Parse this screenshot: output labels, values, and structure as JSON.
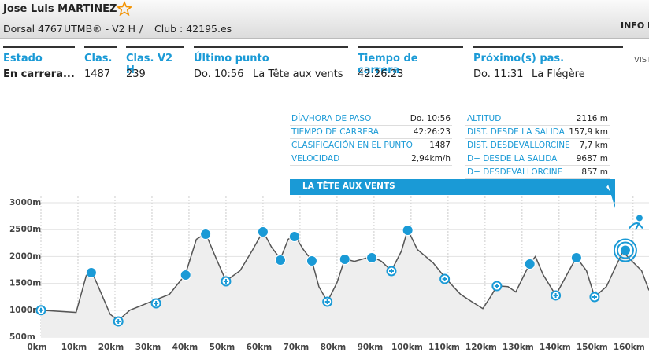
{
  "header": {
    "name": "Jose Luis MARTINEZ",
    "bib": "Dorsal 4767",
    "race": "UTMB® - V2 H",
    "separator": "/",
    "club": "Club : 42195.es",
    "info": "INFO D"
  },
  "stats": [
    {
      "label": "Estado",
      "value": "En carrera..."
    },
    {
      "label": "Clas.",
      "value": 1487
    },
    {
      "label": "Clas. V2 H",
      "value": 239
    },
    {
      "label": "Último punto",
      "time": "Do. 10:56",
      "place": "La Tête aux vents"
    },
    {
      "label": "Tiempo de carrera",
      "value": "42:26:23"
    },
    {
      "label": "Próximo(s) pas.",
      "time": "Do. 11:31",
      "place": "La Flégère"
    }
  ],
  "side_link": "VIST",
  "point_info": {
    "left": [
      [
        "DÍA/HORA DE PASO",
        "Do. 10:56"
      ],
      [
        "TIEMPO DE CARRERA",
        "42:26:23"
      ],
      [
        "CLASIFICACIÓN EN EL PUNTO",
        "1487"
      ],
      [
        "VELOCIDAD",
        "2,94km/h"
      ]
    ],
    "right": [
      [
        "ALTITUD",
        "2116 m"
      ],
      [
        "DIST. DESDE LA SALIDA",
        "157,9 km"
      ],
      [
        "DIST. DESDEVALLORCINE",
        "7,7 km"
      ],
      [
        "D+ DESDE LA SALIDA",
        "9687 m"
      ],
      [
        "D+ DESDEVALLORCINE",
        "857 m"
      ]
    ],
    "banner": "LA TÊTE AUX VENTS"
  },
  "chart_data": {
    "type": "area",
    "color": "#555555",
    "fill": "#eeeeee",
    "marker_color": "#1a9ad6",
    "x": [
      0,
      9.5,
      12.3,
      13.6,
      15.5,
      18.7,
      20.9,
      24,
      29.4,
      34.7,
      39,
      42,
      44.5,
      47.4,
      50,
      53.8,
      57,
      60,
      62.3,
      64.7,
      66.8,
      68.5,
      70.9,
      73.2,
      75.1,
      77.4,
      80,
      82.1,
      84.7,
      89.4,
      92,
      94.7,
      97.4,
      99.1,
      101.7,
      106,
      109.4,
      113.4,
      116.6,
      119.4,
      121.9,
      123.2,
      126.2,
      128.3,
      132.1,
      133.6,
      135.7,
      139.1,
      142.1,
      144.7,
      147.4,
      149.6,
      152.8,
      157.2,
      160.2,
      162.3,
      164.3
    ],
    "values": [
      1000,
      960,
      1660,
      1735,
      1440,
      925,
      810,
      1000,
      1150,
      1295,
      1660,
      2320,
      2430,
      1955,
      1545,
      1735,
      2100,
      2470,
      2175,
      1955,
      2320,
      2400,
      2130,
      1925,
      1440,
      1160,
      1515,
      1955,
      1910,
      2000,
      1910,
      1735,
      2100,
      2500,
      2130,
      1880,
      1590,
      1295,
      1150,
      1030,
      1295,
      1455,
      1440,
      1340,
      1870,
      2000,
      1660,
      1280,
      1660,
      1985,
      1735,
      1250,
      1440,
      2090,
      1880,
      1735,
      1370
    ],
    "checkpoints": {
      "x": [
        0,
        13.6,
        20.9,
        31.1,
        39.1,
        44.5,
        50,
        60,
        64.7,
        68.5,
        73.2,
        77.4,
        82.1,
        89.4,
        94.7,
        99.1,
        109.1,
        123.2,
        132.1,
        139.1,
        144.7,
        149.6
      ],
      "values": [
        1000,
        1699,
        792,
        1129,
        1655,
        2415,
        1538,
        2459,
        1933,
        2371,
        1918,
        1158,
        1947,
        1977,
        1728,
        2488,
        1582,
        1450,
        1860,
        1275,
        1977,
        1246
      ],
      "kinds": [
        "plus",
        "filled",
        "plus",
        "plus",
        "filled",
        "filled",
        "plus",
        "filled",
        "filled",
        "filled",
        "filled",
        "plus",
        "filled",
        "filled",
        "plus",
        "filled",
        "plus",
        "plus",
        "filled",
        "plus",
        "filled",
        "plus"
      ]
    },
    "current": {
      "x": 157.9,
      "value": 2116
    },
    "xlim": [
      0,
      164.3
    ],
    "ylim": [
      500,
      3000
    ],
    "xticks": [
      {
        "value": 0,
        "label": "0km"
      },
      {
        "value": 10,
        "label": "10km"
      },
      {
        "value": 20,
        "label": "20km"
      },
      {
        "value": 30,
        "label": "30km"
      },
      {
        "value": 40,
        "label": "40km"
      },
      {
        "value": 50,
        "label": "50km"
      },
      {
        "value": 60,
        "label": "60km"
      },
      {
        "value": 70,
        "label": "70km"
      },
      {
        "value": 80,
        "label": "80km"
      },
      {
        "value": 90,
        "label": "90km"
      },
      {
        "value": 100,
        "label": "100km"
      },
      {
        "value": 110,
        "label": "110km"
      },
      {
        "value": 120,
        "label": "120km"
      },
      {
        "value": 130,
        "label": "130km"
      },
      {
        "value": 140,
        "label": "140km"
      },
      {
        "value": 150,
        "label": "150km"
      },
      {
        "value": 160,
        "label": "160km"
      }
    ],
    "yticks": [
      {
        "value": 500,
        "label": "500m"
      },
      {
        "value": 1000,
        "label": "1000m"
      },
      {
        "value": 1500,
        "label": "1500m"
      },
      {
        "value": 2000,
        "label": "2000m"
      },
      {
        "value": 2500,
        "label": "2500m"
      },
      {
        "value": 3000,
        "label": "3000m"
      }
    ],
    "grid": true
  }
}
